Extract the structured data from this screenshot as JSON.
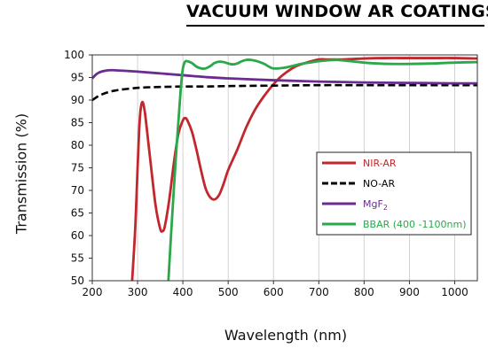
{
  "chart_data": {
    "type": "line",
    "title": "VACUUM WINDOW AR COATINGS",
    "xlabel": "Wavelength (nm)",
    "ylabel": "Transmission (%)",
    "xlim": [
      200,
      1050
    ],
    "ylim": [
      50,
      100
    ],
    "xticks": [
      200,
      300,
      400,
      500,
      600,
      700,
      800,
      900,
      1000
    ],
    "yticks": [
      50,
      55,
      60,
      65,
      70,
      75,
      80,
      85,
      90,
      95,
      100
    ],
    "grid": "vertical",
    "legend_position": "right",
    "series": [
      {
        "name": "NIR-AR",
        "color": "#c1272d",
        "dash": "solid",
        "x": [
          288,
          295,
          300,
          305,
          310,
          315,
          320,
          330,
          340,
          350,
          355,
          360,
          370,
          380,
          390,
          400,
          405,
          410,
          420,
          430,
          440,
          450,
          460,
          470,
          480,
          490,
          500,
          520,
          540,
          560,
          580,
          600,
          620,
          650,
          680,
          700,
          720,
          750,
          800,
          850,
          900,
          950,
          1000,
          1050
        ],
        "y": [
          50,
          62,
          75,
          86,
          89.5,
          88,
          84,
          75,
          66.5,
          61.5,
          61,
          62,
          68,
          76,
          82.5,
          85.5,
          86,
          85.5,
          83,
          79,
          74.5,
          70.5,
          68.5,
          68,
          69,
          71.5,
          74.5,
          79,
          84,
          88,
          91,
          93.5,
          95.5,
          97.5,
          98.5,
          99,
          99,
          99,
          99.2,
          99.3,
          99.3,
          99.3,
          99.3,
          99.2
        ]
      },
      {
        "name": "NO-AR",
        "color": "#000000",
        "dash": "dashed",
        "x": [
          200,
          220,
          250,
          300,
          350,
          400,
          450,
          500,
          600,
          700,
          800,
          900,
          1000,
          1050
        ],
        "y": [
          90,
          91.2,
          92.1,
          92.7,
          92.9,
          93,
          93,
          93.1,
          93.2,
          93.3,
          93.3,
          93.3,
          93.3,
          93.3
        ]
      },
      {
        "name": "MgF2",
        "color": "#6a2c91",
        "dash": "solid",
        "x": [
          200,
          210,
          220,
          235,
          250,
          270,
          300,
          350,
          400,
          450,
          500,
          600,
          700,
          800,
          900,
          1000,
          1050
        ],
        "y": [
          94.8,
          95.8,
          96.3,
          96.6,
          96.6,
          96.5,
          96.3,
          95.9,
          95.5,
          95.1,
          94.8,
          94.4,
          94.1,
          93.9,
          93.8,
          93.7,
          93.7
        ]
      },
      {
        "name": "BBAR (400 -1100nm)",
        "color": "#2aa84a",
        "dash": "solid",
        "x": [
          368,
          375,
          385,
          395,
          400,
          405,
          410,
          420,
          430,
          440,
          450,
          460,
          470,
          480,
          490,
          500,
          510,
          520,
          530,
          540,
          550,
          560,
          570,
          580,
          590,
          600,
          620,
          640,
          660,
          680,
          700,
          720,
          740,
          760,
          780,
          800,
          830,
          860,
          900,
          950,
          1000,
          1050
        ],
        "y": [
          50,
          62,
          78,
          92,
          97,
          98.5,
          98.6,
          98.2,
          97.4,
          97,
          97,
          97.5,
          98.2,
          98.5,
          98.4,
          98.1,
          97.9,
          98.1,
          98.6,
          98.9,
          98.9,
          98.7,
          98.4,
          98,
          97.4,
          97,
          97.1,
          97.5,
          98,
          98.3,
          98.6,
          98.8,
          98.9,
          98.7,
          98.5,
          98.3,
          98.1,
          98,
          98,
          98.1,
          98.3,
          98.4
        ]
      }
    ]
  }
}
